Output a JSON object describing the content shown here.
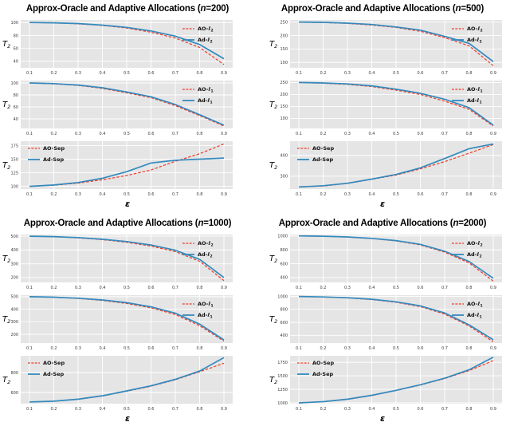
{
  "figure": {
    "bg": "#ffffff",
    "plot_bg": "#e5e5e6",
    "grid_color": "#ffffff",
    "tick_color": "#3d3d3d",
    "legend_text_color": "#111111",
    "series_colors": {
      "ao": "#ef3a24",
      "ad": "#348abd"
    },
    "xlabel": "ε",
    "ylabel_base": "T",
    "ylabel_sub": "2"
  },
  "chart_data": [
    {
      "n": "200",
      "title_prefix": "Approx-Oracle and Adaptive Allocations (",
      "title_n": "n",
      "title_suffix": "=200)",
      "type": "line",
      "xlabel": "ε",
      "ylabel": "T2",
      "x": [
        0.1,
        0.2,
        0.3,
        0.4,
        0.5,
        0.6,
        0.7,
        0.8,
        0.9
      ],
      "subplots": [
        {
          "id": "l2",
          "yticks": [
            40,
            60,
            80,
            100
          ],
          "ylim": [
            30,
            104
          ],
          "legend_pos": "right",
          "series": [
            {
              "name": "AO-l2",
              "label_base": "AO-ℓ",
              "label_sub": "2",
              "color": "ao",
              "dashed": true,
              "values": [
                100,
                99.4,
                98,
                95.5,
                91.5,
                85,
                76,
                61.5,
                35
              ]
            },
            {
              "name": "Ad-l2",
              "label_base": "Ad-ℓ",
              "label_sub": "2",
              "color": "ad",
              "dashed": false,
              "values": [
                100,
                99.5,
                98.5,
                96,
                92.5,
                87,
                79,
                66,
                44
              ]
            }
          ]
        },
        {
          "id": "l1",
          "yticks": [
            40,
            60,
            80,
            100
          ],
          "ylim": [
            24,
            104
          ],
          "legend_pos": "right",
          "series": [
            {
              "name": "AO-l1",
              "label_base": "AO-ℓ",
              "label_sub": "1",
              "color": "ao",
              "dashed": true,
              "values": [
                100,
                98.5,
                96,
                91,
                83.5,
                75.5,
                62,
                45.5,
                28
              ]
            },
            {
              "name": "Ad-l1",
              "label_base": "Ad-ℓ",
              "label_sub": "1",
              "color": "ad",
              "dashed": false,
              "values": [
                100,
                99,
                96.5,
                92,
                85,
                77,
                64,
                47,
                29.5
              ]
            }
          ]
        },
        {
          "id": "sep",
          "yticks": [
            100,
            125,
            150,
            175
          ],
          "ylim": [
            95,
            183
          ],
          "legend_pos": "left",
          "series": [
            {
              "name": "AO-Sep",
              "label_base": "AO-Sep",
              "label_sub": "",
              "color": "ao",
              "dashed": true,
              "values": [
                100,
                102,
                106,
                112,
                120,
                130,
                146,
                160,
                178
              ]
            },
            {
              "name": "Ad-Sep",
              "label_base": "Ad-Sep",
              "label_sub": "",
              "color": "ad",
              "dashed": false,
              "values": [
                100,
                102.5,
                107,
                115,
                127,
                143,
                148,
                150,
                152
              ]
            }
          ]
        }
      ]
    },
    {
      "n": "500",
      "title_prefix": "Approx-Oracle and Adaptive Allocations (",
      "title_n": "n",
      "title_suffix": "=500)",
      "type": "line",
      "xlabel": "ε",
      "ylabel": "T2",
      "x": [
        0.1,
        0.2,
        0.3,
        0.4,
        0.5,
        0.6,
        0.7,
        0.8,
        0.9
      ],
      "subplots": [
        {
          "id": "l2",
          "yticks": [
            100,
            150,
            200,
            250
          ],
          "ylim": [
            80,
            258
          ],
          "legend_pos": "right",
          "series": [
            {
              "name": "AO-l2",
              "label_base": "AO-ℓ",
              "label_sub": "2",
              "color": "ao",
              "dashed": true,
              "values": [
                250,
                248.5,
                245,
                239,
                230,
                216,
                192,
                162,
                88
              ]
            },
            {
              "name": "Ad-l2",
              "label_base": "Ad-ℓ",
              "label_sub": "2",
              "color": "ad",
              "dashed": false,
              "values": [
                250,
                249,
                246,
                241,
                232,
                220,
                197,
                171,
                103
              ]
            }
          ]
        },
        {
          "id": "l1",
          "yticks": [
            100,
            150,
            200,
            250
          ],
          "ylim": [
            58,
            258
          ],
          "legend_pos": "right",
          "series": [
            {
              "name": "AO-l1",
              "label_base": "AO-ℓ",
              "label_sub": "1",
              "color": "ao",
              "dashed": true,
              "values": [
                250,
                247,
                242,
                233,
                218,
                200,
                172,
                138,
                68
              ]
            },
            {
              "name": "Ad-l1",
              "label_base": "Ad-ℓ",
              "label_sub": "1",
              "color": "ad",
              "dashed": false,
              "values": [
                250,
                248,
                244,
                236,
                222,
                205,
                180,
                145,
                72
              ]
            }
          ]
        },
        {
          "id": "sep",
          "yticks": [
            300,
            400
          ],
          "ylim": [
            238,
            468
          ],
          "legend_pos": "left",
          "series": [
            {
              "name": "AO-Sep",
              "label_base": "AO-Sep",
              "label_sub": "",
              "color": "ao",
              "dashed": true,
              "values": [
                248,
                253,
                265,
                285,
                305,
                335,
                370,
                410,
                452
              ]
            },
            {
              "name": "Ad-Sep",
              "label_base": "Ad-Sep",
              "label_sub": "",
              "color": "ad",
              "dashed": false,
              "values": [
                248,
                254,
                266,
                286,
                308,
                340,
                385,
                432,
                455
              ]
            }
          ]
        }
      ]
    },
    {
      "n": "1000",
      "title_prefix": "Approx-Oracle and Adaptive Allocations (",
      "title_n": "n",
      "title_suffix": "=1000)",
      "type": "line",
      "xlabel": "ε",
      "ylabel": "T2",
      "x": [
        0.1,
        0.2,
        0.3,
        0.4,
        0.5,
        0.6,
        0.7,
        0.8,
        0.9
      ],
      "subplots": [
        {
          "id": "l2",
          "yticks": [
            200,
            300,
            400,
            500
          ],
          "ylim": [
            165,
            512
          ],
          "legend_pos": "right",
          "series": [
            {
              "name": "AO-l2",
              "label_base": "AO-ℓ",
              "label_sub": "2",
              "color": "ao",
              "dashed": true,
              "values": [
                500,
                496,
                488,
                475,
                456,
                428,
                388,
                318,
                178
              ]
            },
            {
              "name": "Ad-l2",
              "label_base": "Ad-ℓ",
              "label_sub": "2",
              "color": "ad",
              "dashed": false,
              "values": [
                500,
                497,
                490,
                478,
                461,
                436,
                398,
                332,
                200
              ]
            }
          ]
        },
        {
          "id": "l1",
          "yticks": [
            200,
            300,
            400,
            500
          ],
          "ylim": [
            130,
            512
          ],
          "legend_pos": "right",
          "series": [
            {
              "name": "AO-l1",
              "label_base": "AO-ℓ",
              "label_sub": "1",
              "color": "ao",
              "dashed": true,
              "values": [
                500,
                495,
                486,
                470,
                446,
                411,
                358,
                268,
                145
              ]
            },
            {
              "name": "Ad-l1",
              "label_base": "Ad-ℓ",
              "label_sub": "1",
              "color": "ad",
              "dashed": false,
              "values": [
                500,
                496,
                488,
                474,
                452,
                419,
                368,
                281,
                155
              ]
            }
          ]
        },
        {
          "id": "sep",
          "yticks": [
            600,
            800
          ],
          "ylim": [
            488,
            968
          ],
          "legend_pos": "left",
          "series": [
            {
              "name": "AO-Sep",
              "label_base": "AO-Sep",
              "label_sub": "",
              "color": "ao",
              "dashed": true,
              "values": [
                505,
                512,
                532,
                565,
                613,
                663,
                728,
                808,
                893
              ]
            },
            {
              "name": "Ad-Sep",
              "label_base": "Ad-Sep",
              "label_sub": "",
              "color": "ad",
              "dashed": false,
              "values": [
                505,
                513,
                533,
                567,
                616,
                667,
                732,
                815,
                950
              ]
            }
          ]
        }
      ]
    },
    {
      "n": "2000",
      "title_prefix": "Approx-Oracle and Adaptive Allocations (",
      "title_n": "n",
      "title_suffix": "=2000)",
      "type": "line",
      "xlabel": "ε",
      "ylabel": "T2",
      "x": [
        0.1,
        0.2,
        0.3,
        0.4,
        0.5,
        0.6,
        0.7,
        0.8,
        0.9
      ],
      "subplots": [
        {
          "id": "l2",
          "yticks": [
            400,
            600,
            800,
            1000
          ],
          "ylim": [
            330,
            1020
          ],
          "legend_pos": "right",
          "series": [
            {
              "name": "AO-l2",
              "label_base": "AO-ℓ",
              "label_sub": "2",
              "color": "ao",
              "dashed": true,
              "values": [
                1000,
                995,
                983,
                962,
                928,
                870,
                766,
                612,
                350
              ]
            },
            {
              "name": "Ad-l2",
              "label_base": "Ad-ℓ",
              "label_sub": "2",
              "color": "ad",
              "dashed": false,
              "values": [
                1000,
                996,
                985,
                965,
                933,
                878,
                780,
                632,
                390
              ]
            }
          ]
        },
        {
          "id": "l1",
          "yticks": [
            400,
            600,
            800,
            1000
          ],
          "ylim": [
            280,
            1020
          ],
          "legend_pos": "right",
          "series": [
            {
              "name": "AO-l1",
              "label_base": "AO-ℓ",
              "label_sub": "1",
              "color": "ao",
              "dashed": true,
              "values": [
                1000,
                992,
                977,
                952,
                910,
                843,
                728,
                545,
                300
              ]
            },
            {
              "name": "Ad-l1",
              "label_base": "Ad-ℓ",
              "label_sub": "1",
              "color": "ad",
              "dashed": false,
              "values": [
                1000,
                993,
                980,
                957,
                918,
                855,
                745,
                562,
                330
              ]
            }
          ]
        },
        {
          "id": "sep",
          "yticks": [
            1000,
            1250,
            1500,
            1750
          ],
          "ylim": [
            985,
            1870
          ],
          "legend_pos": "left",
          "series": [
            {
              "name": "AO-Sep",
              "label_base": "AO-Sep",
              "label_sub": "",
              "color": "ao",
              "dashed": true,
              "values": [
                1000,
                1020,
                1065,
                1135,
                1228,
                1330,
                1450,
                1595,
                1780
              ]
            },
            {
              "name": "Ad-Sep",
              "label_base": "Ad-Sep",
              "label_sub": "",
              "color": "ad",
              "dashed": false,
              "values": [
                1000,
                1022,
                1068,
                1140,
                1232,
                1335,
                1455,
                1610,
                1845
              ]
            }
          ]
        }
      ]
    }
  ]
}
